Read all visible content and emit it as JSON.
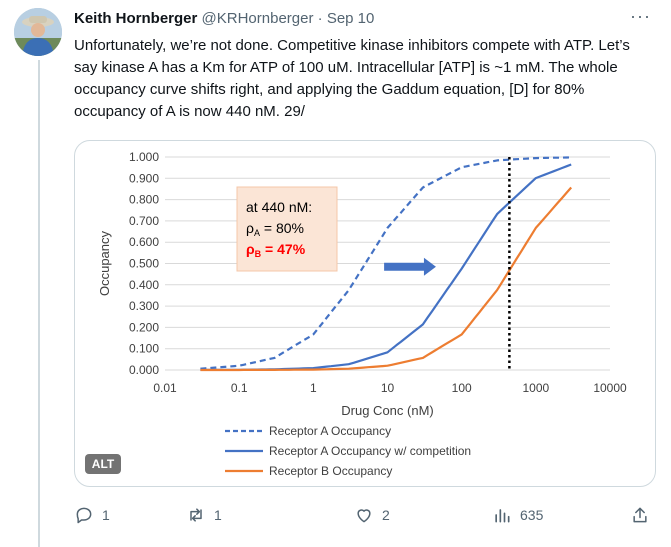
{
  "post": {
    "author_name": "Keith Hornberger",
    "author_handle": "@KRHornberger",
    "separator": "·",
    "date": "Sep 10",
    "more_label": "···",
    "text": "Unfortunately, we’re not done. Competitive kinase inhibitors compete with ATP. Let’s say kinase A has a Km for ATP of 100 uM. Intracellular [ATP] is ~1 mM. The whole occupancy curve shifts right, and applying the Gaddum equation, [D] for 80% occupancy of A is now 440 nM. 29/",
    "alt_badge": "ALT"
  },
  "actions": {
    "replies": "1",
    "reposts": "1",
    "likes": "2",
    "views": "635"
  },
  "icons": {
    "reply": "reply-icon",
    "repost": "repost-icon",
    "like": "heart-icon",
    "views": "views-icon",
    "share": "share-icon",
    "more": "more-icon"
  },
  "chart_data": {
    "type": "line",
    "xlabel": "Drug Conc (nM)",
    "ylabel": "Occupancy",
    "x_scale": "log",
    "xlim": [
      0.01,
      10000
    ],
    "ylim": [
      0,
      1
    ],
    "x_ticks": [
      "0.01",
      "0.1",
      "1",
      "10",
      "100",
      "1000",
      "10000"
    ],
    "x_tick_values": [
      0.01,
      0.1,
      1,
      10,
      100,
      1000,
      10000
    ],
    "y_ticks": [
      "0.000",
      "0.100",
      "0.200",
      "0.300",
      "0.400",
      "0.500",
      "0.600",
      "0.700",
      "0.800",
      "0.900",
      "1.000"
    ],
    "y_tick_values": [
      0,
      0.1,
      0.2,
      0.3,
      0.4,
      0.5,
      0.6,
      0.7,
      0.8,
      0.9,
      1.0
    ],
    "grid": "horizontal",
    "legend_position": "bottom",
    "series": [
      {
        "name": "Receptor A Occupancy",
        "color": "#4472c4",
        "dash": "dashed",
        "x": [
          0.03,
          0.1,
          0.3,
          1,
          3,
          10,
          30,
          100,
          300,
          1000,
          3000
        ],
        "y": [
          0.006,
          0.02,
          0.057,
          0.167,
          0.375,
          0.667,
          0.857,
          0.952,
          0.984,
          0.995,
          0.998
        ]
      },
      {
        "name": "Receptor A Occupancy w/ competition",
        "color": "#4472c4",
        "dash": "solid",
        "x": [
          0.03,
          0.1,
          0.3,
          1,
          3,
          10,
          30,
          100,
          300,
          1000,
          3000
        ],
        "y": [
          0.0003,
          0.001,
          0.003,
          0.009,
          0.027,
          0.083,
          0.214,
          0.476,
          0.732,
          0.901,
          0.965
        ]
      },
      {
        "name": "Receptor B Occupancy",
        "color": "#ed7d31",
        "dash": "solid",
        "x": [
          0.03,
          0.1,
          0.3,
          1,
          3,
          10,
          30,
          100,
          300,
          1000,
          3000
        ],
        "y": [
          0.0001,
          0.0002,
          0.0006,
          0.002,
          0.006,
          0.02,
          0.057,
          0.167,
          0.375,
          0.667,
          0.857
        ]
      }
    ],
    "vline": {
      "x": 440,
      "color": "#000000",
      "style": "dotted"
    },
    "annotation": {
      "line1": "at 440 nM:",
      "line2_prefix": "ρ",
      "line2_sub": "A",
      "line2_suffix": " = 80%",
      "line3_prefix": "ρ",
      "line3_sub": "B",
      "line3_suffix": " = 47%",
      "box_color": "#fbe5d6",
      "highlight_color": "#ff0000"
    },
    "arrow": {
      "direction": "right",
      "color": "#4472c4",
      "x_from": 9,
      "x_to": 45,
      "y": 0.485
    }
  }
}
